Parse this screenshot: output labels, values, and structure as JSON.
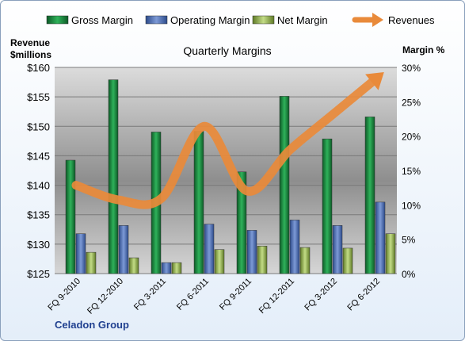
{
  "chart_data": {
    "type": "bar",
    "title": "Quarterly Margins",
    "left_axis_label_line1": "Revenue",
    "left_axis_label_line2": "$millions",
    "right_axis_label": "Margin %",
    "categories": [
      "FQ 9-2010",
      "FQ 12-2010",
      "FQ 3-2011",
      "FQ 6-2011",
      "FQ 9-2011",
      "FQ 12-2011",
      "FQ 3-2012",
      "FQ 6-2012"
    ],
    "series": [
      {
        "name": "Gross Margin",
        "axis": "right",
        "values": [
          16.5,
          28.2,
          20.6,
          20.7,
          14.8,
          25.8,
          19.6,
          22.8
        ],
        "color": "#1c8a40"
      },
      {
        "name": "Operating Margin",
        "axis": "right",
        "values": [
          5.8,
          7.0,
          1.6,
          7.2,
          6.3,
          7.8,
          7.0,
          10.4
        ],
        "color": "#4f6fb5"
      },
      {
        "name": "Net Margin",
        "axis": "right",
        "values": [
          3.1,
          2.3,
          1.6,
          3.5,
          4.0,
          3.8,
          3.7,
          5.8
        ],
        "color": "#9bbb59"
      }
    ],
    "line_series": {
      "name": "Revenues",
      "axis": "left",
      "values": [
        140.0,
        137.5,
        137.8,
        150.0,
        139.0,
        146.0,
        152.0,
        158.0
      ],
      "color": "#e98a3a"
    },
    "left_axis": {
      "min": 125,
      "max": 160,
      "ticks": [
        "$125",
        "$130",
        "$135",
        "$140",
        "$145",
        "$150",
        "$155",
        "$160"
      ]
    },
    "right_axis": {
      "min": 0,
      "max": 30,
      "ticks": [
        "0%",
        "5%",
        "10%",
        "15%",
        "20%",
        "25%",
        "30%"
      ]
    },
    "legend_position": "top",
    "grid": true
  },
  "company": "Celadon Group"
}
